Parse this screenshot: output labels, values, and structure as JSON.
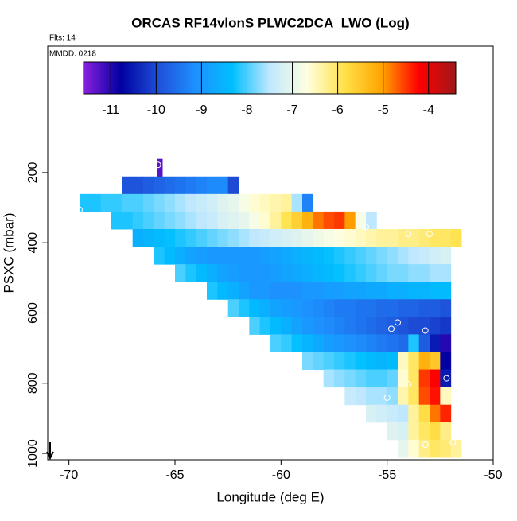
{
  "chart_data": {
    "type": "heatmap",
    "title": "ORCAS RF14vlonS PLWC2DCA_LWO (Log)",
    "flights": "Flts: 14",
    "date": "MMDD: 0218",
    "x_label": "Longitude (deg E)",
    "y_label": "PSXC (mbar)",
    "xlim": [
      -71,
      -50
    ],
    "xticks": [
      -70,
      -65,
      -60,
      -55,
      -50
    ],
    "ylim": [
      1018,
      -160
    ],
    "yticks": [
      200,
      400,
      600,
      800,
      1000
    ],
    "colorbar": {
      "lim": [
        -11.6,
        -3.4
      ],
      "ticks": [
        -11,
        -10,
        -9,
        -8,
        -7,
        -6,
        -5,
        -4
      ],
      "colors": [
        "#8b1fe0",
        "#0000a0",
        "#1e4fd8",
        "#1e90ff",
        "#00bfff",
        "#bfe8ff",
        "#ffffe0",
        "#ffe24a",
        "#ffa500",
        "#ff0000",
        "#a01818"
      ]
    },
    "rows": [
      {
        "p": [
          161,
          211
        ],
        "lon": [
          -65.85,
          -65.6
        ],
        "values": [
          -11.3
        ]
      },
      {
        "p": [
          211,
          261
        ],
        "lon": [
          -67.5,
          -62
        ],
        "values": [
          -9.9,
          -9.9,
          -9.8,
          -9.7,
          -9.6,
          -9.5,
          -9.4,
          -9.3,
          -9.2,
          -9.2,
          -10.0
        ]
      },
      {
        "p": [
          261,
          311
        ],
        "lon": [
          -69.5,
          -58.5
        ],
        "values": [
          -8.2,
          -8.2,
          -8.1,
          -8.1,
          -8.0,
          -8.0,
          -7.9,
          -7.8,
          -7.7,
          -7.6,
          -7.5,
          -7.4,
          -7.3,
          -7.1,
          -7.0,
          -6.8,
          -6.6,
          -6.5,
          -6.4,
          -6.3,
          -7.6,
          -9.3
        ]
      },
      {
        "p": [
          311,
          361
        ],
        "lon": [
          -68,
          -55.5
        ],
        "values": [
          -8.2,
          -8.2,
          -8.1,
          -8.0,
          -7.9,
          -7.8,
          -7.7,
          -7.6,
          -7.5,
          -7.4,
          -7.2,
          -7.1,
          -7.0,
          -6.8,
          -6.6,
          -6.3,
          -5.9,
          -5.6,
          -5.2,
          -4.8,
          -4.6,
          -4.5,
          -5.0,
          -6.8,
          -7.5
        ]
      },
      {
        "p": [
          361,
          411
        ],
        "lon": [
          -67,
          -51.5
        ],
        "values": [
          -8.6,
          -8.5,
          -8.4,
          -8.3,
          -8.2,
          -8.1,
          -8.0,
          -7.9,
          -7.8,
          -7.7,
          -7.6,
          -7.5,
          -7.4,
          -7.3,
          -7.2,
          -7.1,
          -7.0,
          -6.9,
          -6.8,
          -6.7,
          -6.6,
          -6.5,
          -6.4,
          -6.3,
          -6.3,
          -6.2,
          -6.2,
          -6.1,
          -6.0,
          -6.0,
          -5.9
        ]
      },
      {
        "p": [
          411,
          461
        ],
        "lon": [
          -66,
          -52
        ],
        "values": [
          -8.2,
          -8.4,
          -8.6,
          -8.8,
          -8.9,
          -9.0,
          -9.0,
          -9.0,
          -9.0,
          -9.0,
          -8.9,
          -8.8,
          -8.7,
          -8.6,
          -8.5,
          -8.4,
          -8.3,
          -8.2,
          -8.1,
          -8.0,
          -7.9,
          -7.8,
          -7.7,
          -7.6,
          -7.5,
          -7.4,
          -7.3,
          -7.2
        ]
      },
      {
        "p": [
          461,
          511
        ],
        "lon": [
          -65,
          -52
        ],
        "values": [
          -8.0,
          -8.2,
          -8.4,
          -8.6,
          -8.8,
          -8.9,
          -9.0,
          -9.0,
          -9.0,
          -8.9,
          -8.8,
          -8.7,
          -8.6,
          -8.5,
          -8.4,
          -8.3,
          -8.2,
          -8.1,
          -8.0,
          -7.9,
          -7.8,
          -7.8,
          -7.7,
          -7.7,
          -7.6,
          -7.6
        ]
      },
      {
        "p": [
          511,
          561
        ],
        "lon": [
          -63.5,
          -52
        ],
        "values": [
          -8.2,
          -8.4,
          -8.6,
          -8.8,
          -9.0,
          -9.0,
          -9.1,
          -9.1,
          -9.1,
          -9.0,
          -9.0,
          -8.9,
          -8.9,
          -8.8,
          -8.8,
          -8.7,
          -8.7,
          -8.6,
          -8.6,
          -8.5,
          -8.5,
          -8.4,
          -8.4
        ]
      },
      {
        "p": [
          561,
          611
        ],
        "lon": [
          -62.5,
          -52
        ],
        "values": [
          -8.0,
          -8.2,
          -8.4,
          -8.6,
          -8.8,
          -8.9,
          -9.0,
          -9.1,
          -9.2,
          -9.3,
          -9.4,
          -9.4,
          -9.5,
          -9.5,
          -9.6,
          -9.6,
          -9.7,
          -9.7,
          -9.8,
          -9.8,
          -9.9
        ]
      },
      {
        "p": [
          611,
          661
        ],
        "lon": [
          -61.5,
          -52
        ],
        "values": [
          -8.0,
          -8.2,
          -8.4,
          -8.6,
          -8.8,
          -9.0,
          -9.1,
          -9.2,
          -9.3,
          -9.4,
          -9.5,
          -9.6,
          -9.7,
          -9.8,
          -9.9,
          -10.0,
          -10.0,
          -10.1,
          -10.2
        ]
      },
      {
        "p": [
          661,
          711
        ],
        "lon": [
          -60.5,
          -52
        ],
        "values": [
          -8.0,
          -8.1,
          -8.3,
          -8.5,
          -8.7,
          -8.9,
          -9.0,
          -9.1,
          -9.2,
          -9.3,
          -9.4,
          -9.5,
          -9.6,
          -8.2,
          -9.8,
          -10.5,
          -11.0
        ]
      },
      {
        "p": [
          711,
          761
        ],
        "lon": [
          -59,
          -52
        ],
        "values": [
          -7.8,
          -7.9,
          -8.0,
          -8.1,
          -8.2,
          -8.3,
          -8.4,
          -8.5,
          -8.4,
          -6.5,
          -6.0,
          -5.2,
          -5.5,
          -10.8
        ]
      },
      {
        "p": [
          761,
          811
        ],
        "lon": [
          -58,
          -52
        ],
        "values": [
          -7.6,
          -7.7,
          -7.8,
          -7.9,
          -8.0,
          -8.0,
          -7.9,
          -6.6,
          -6.0,
          -4.5,
          -4.2,
          -10.5
        ]
      },
      {
        "p": [
          811,
          861
        ],
        "lon": [
          -57,
          -52
        ],
        "values": [
          -7.4,
          -7.5,
          -7.6,
          -7.6,
          -7.7,
          -6.4,
          -6.0,
          -4.6,
          -4.3,
          -6.5
        ]
      },
      {
        "p": [
          861,
          911
        ],
        "lon": [
          -56,
          -52
        ],
        "values": [
          -7.2,
          -7.3,
          -7.4,
          -7.5,
          -6.3,
          -5.8,
          -4.8,
          -4.4
        ]
      },
      {
        "p": [
          911,
          961
        ],
        "lon": [
          -55,
          -52
        ],
        "values": [
          -7.1,
          -7.2,
          -6.3,
          -6.0,
          -5.8,
          -6.2
        ]
      },
      {
        "p": [
          961,
          1011
        ],
        "lon": [
          -54.5,
          -51.5
        ],
        "values": [
          -7.0,
          -6.6,
          -6.2,
          -6.0,
          -6.1,
          -6.3
        ]
      }
    ],
    "points": {
      "lon": [
        -65.8,
        -69.5,
        -56,
        -54,
        -53,
        -54.8,
        -54.5,
        -53.2,
        -51.8,
        -54,
        -52.2,
        -55,
        -53.2,
        -51.9
      ],
      "p": [
        178,
        306,
        355,
        375,
        375,
        645,
        627,
        650,
        661,
        803,
        786,
        841,
        975,
        968
      ]
    }
  }
}
